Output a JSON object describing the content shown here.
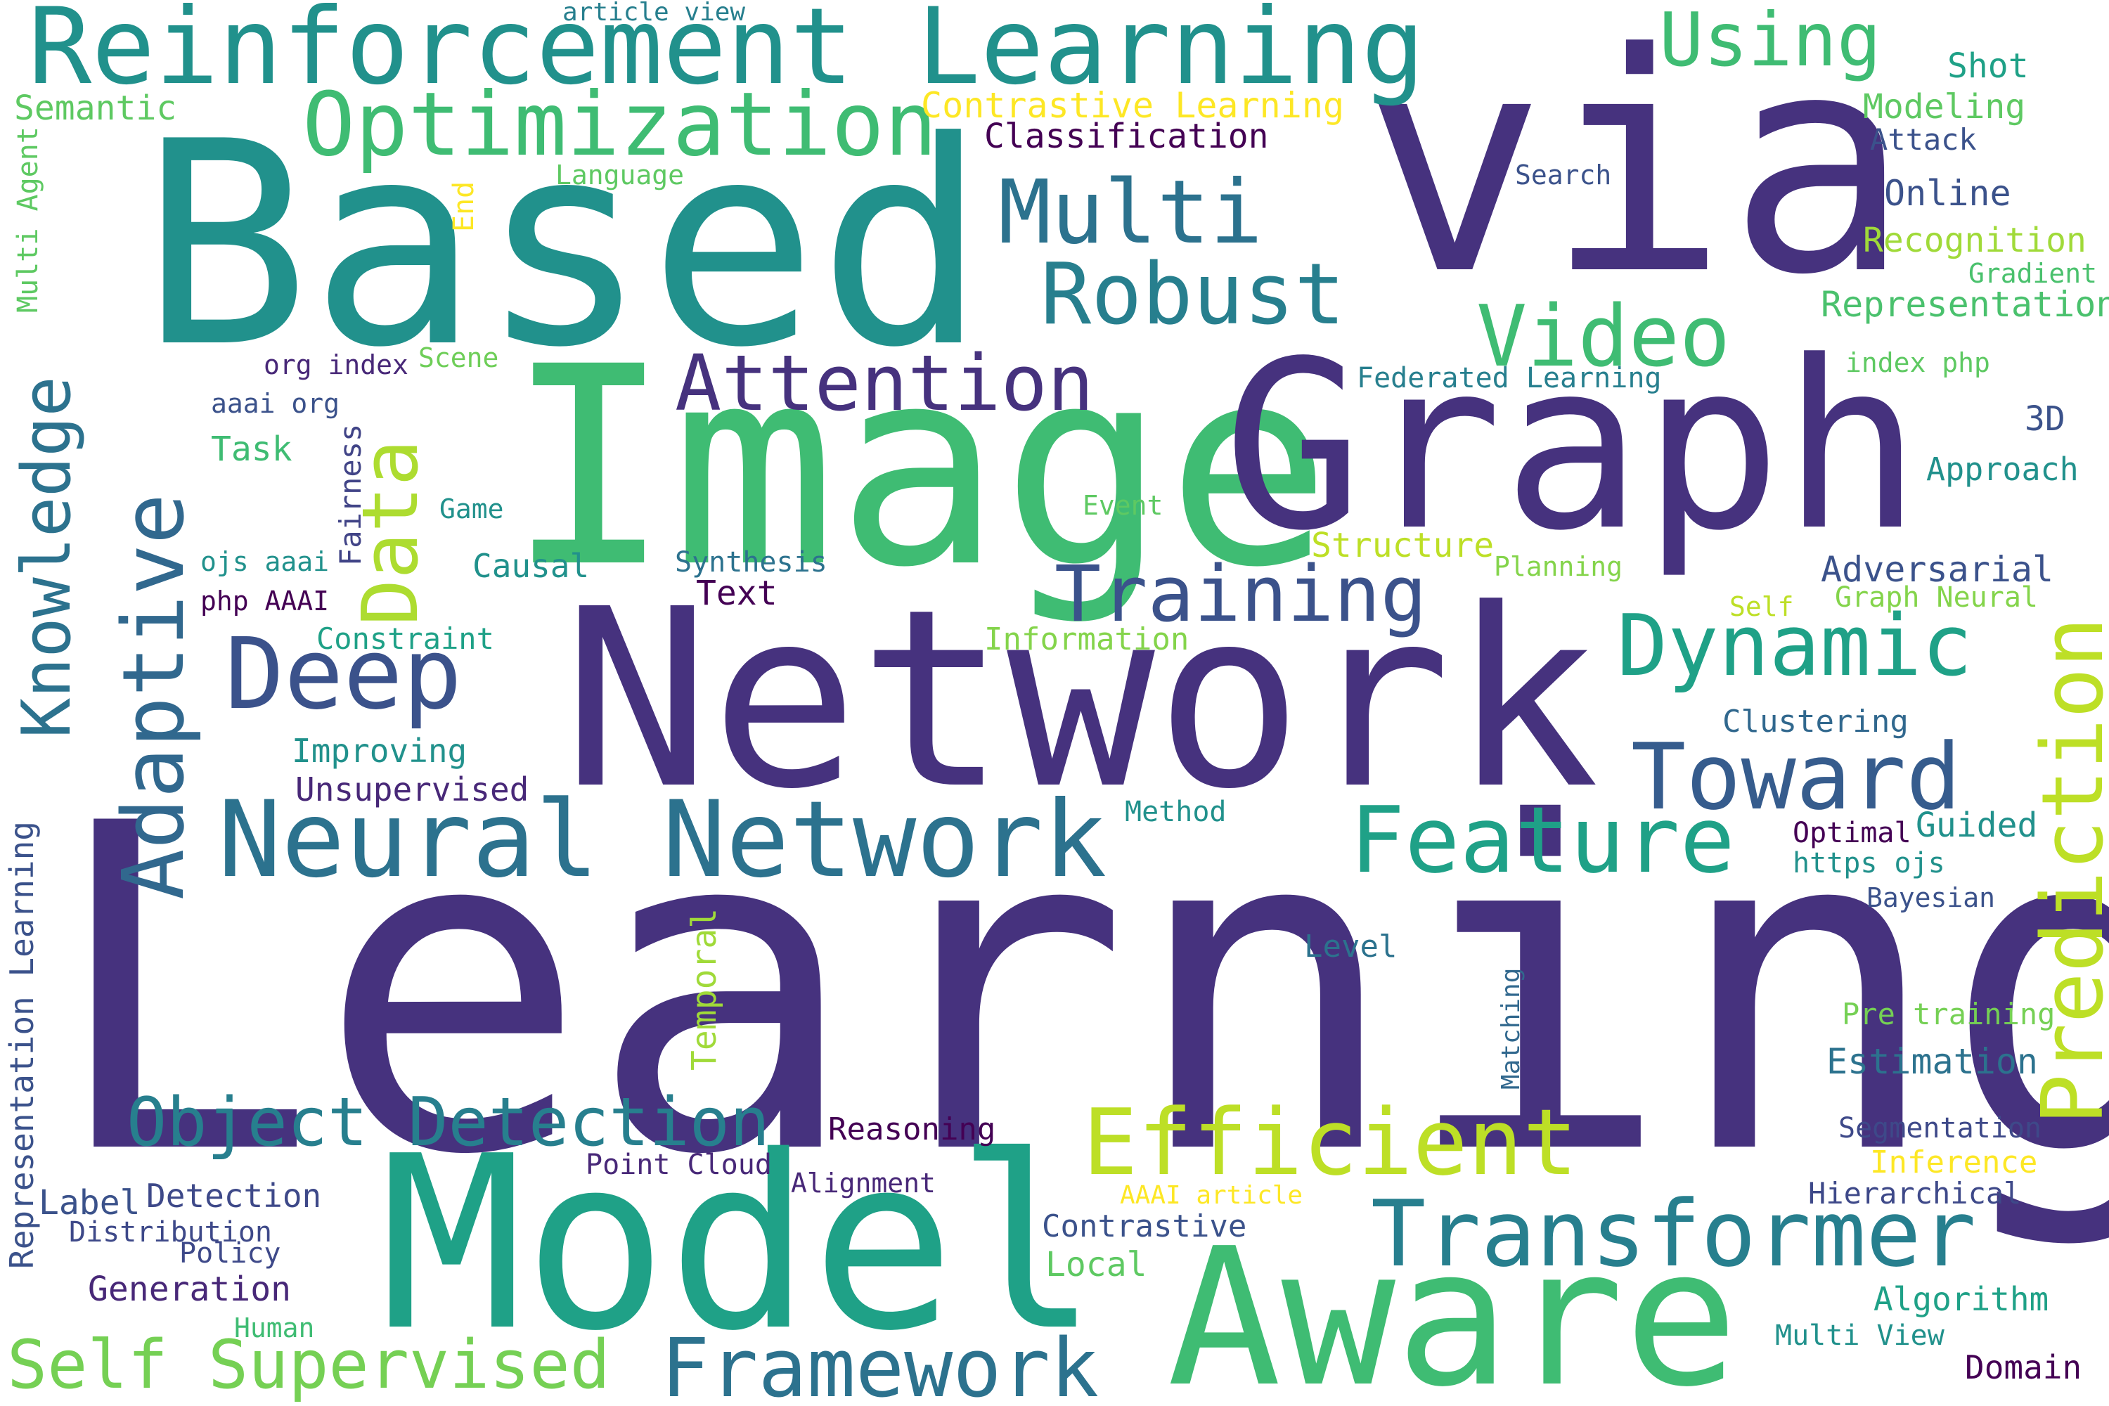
{
  "words": [
    {
      "text": "Learning",
      "color": "#46327e"
    },
    {
      "text": "Network",
      "color": "#46327e"
    },
    {
      "text": "via",
      "color": "#46327e"
    },
    {
      "text": "Based",
      "color": "#21918c"
    },
    {
      "text": "Image",
      "color": "#3fbc73"
    },
    {
      "text": "Graph",
      "color": "#46327e"
    },
    {
      "text": "Model",
      "color": "#1fa187"
    },
    {
      "text": "Aware",
      "color": "#3fbc73"
    },
    {
      "text": "Reinforcement Learning",
      "color": "#21918c"
    },
    {
      "text": "Neural Network",
      "color": "#2c728e"
    },
    {
      "text": "Transformer",
      "color": "#277f8e"
    },
    {
      "text": "Efficient",
      "color": "#bddf26"
    },
    {
      "text": "Feature",
      "color": "#1fa187"
    },
    {
      "text": "Toward",
      "color": "#365c8d"
    },
    {
      "text": "Dynamic",
      "color": "#1fa187"
    },
    {
      "text": "Prediction",
      "color": "#bddf26"
    },
    {
      "text": "Deep",
      "color": "#3b528b"
    },
    {
      "text": "Optimization",
      "color": "#3fbc73"
    },
    {
      "text": "Multi",
      "color": "#2c728e"
    },
    {
      "text": "Robust",
      "color": "#277f8e"
    },
    {
      "text": "Video",
      "color": "#3fbc73"
    },
    {
      "text": "Attention",
      "color": "#46327e"
    },
    {
      "text": "Training",
      "color": "#3b528b"
    },
    {
      "text": "Object Detection",
      "color": "#277f8e"
    },
    {
      "text": "Framework",
      "color": "#2c728e"
    },
    {
      "text": "Self Supervised",
      "color": "#75d054"
    },
    {
      "text": "Adaptive",
      "color": "#31688e"
    },
    {
      "text": "Knowledge",
      "color": "#2c728e"
    },
    {
      "text": "Data",
      "color": "#addc30"
    },
    {
      "text": "Using",
      "color": "#3fbc73"
    },
    {
      "text": "Contrastive Learning",
      "color": "#fde725"
    },
    {
      "text": "Classification",
      "color": "#440154"
    },
    {
      "text": "Semantic",
      "color": "#5ec962"
    },
    {
      "text": "Multi Agent",
      "color": "#5ec962"
    },
    {
      "text": "article view",
      "color": "#277f8e"
    },
    {
      "text": "Language",
      "color": "#5ec962"
    },
    {
      "text": "End",
      "color": "#fde725"
    },
    {
      "text": "Shot",
      "color": "#1fa187"
    },
    {
      "text": "Modeling",
      "color": "#5ec962"
    },
    {
      "text": "Attack",
      "color": "#3b528b"
    },
    {
      "text": "Search",
      "color": "#3b528b"
    },
    {
      "text": "Online",
      "color": "#3b528b"
    },
    {
      "text": "Recognition",
      "color": "#a0da39"
    },
    {
      "text": "Gradient",
      "color": "#4ac16d"
    },
    {
      "text": "Representation",
      "color": "#4ac16d"
    },
    {
      "text": "index php",
      "color": "#5ec962"
    },
    {
      "text": "Federated Learning",
      "color": "#277f8e"
    },
    {
      "text": "org index",
      "color": "#482878"
    },
    {
      "text": "Scene",
      "color": "#6ece58"
    },
    {
      "text": "aaai org",
      "color": "#3b528b"
    },
    {
      "text": "Task",
      "color": "#3fbc73"
    },
    {
      "text": "Fairness",
      "color": "#414487"
    },
    {
      "text": "Game",
      "color": "#21918c"
    },
    {
      "text": "Event",
      "color": "#5ec962"
    },
    {
      "text": "ojs aaai",
      "color": "#21918c"
    },
    {
      "text": "Causal",
      "color": "#21918c"
    },
    {
      "text": "Synthesis",
      "color": "#2c728e"
    },
    {
      "text": "Structure",
      "color": "#bddf26"
    },
    {
      "text": "Planning",
      "color": "#84d44b"
    },
    {
      "text": "php AAAI",
      "color": "#440154"
    },
    {
      "text": "Text",
      "color": "#440154"
    },
    {
      "text": "3D",
      "color": "#3b528b"
    },
    {
      "text": "Approach",
      "color": "#21918c"
    },
    {
      "text": "Adversarial",
      "color": "#3b528b"
    },
    {
      "text": "Graph Neural",
      "color": "#84d44b"
    },
    {
      "text": "Self",
      "color": "#bddf26"
    },
    {
      "text": "Constraint",
      "color": "#1fa187"
    },
    {
      "text": "Information",
      "color": "#84d44b"
    },
    {
      "text": "Clustering",
      "color": "#31688e"
    },
    {
      "text": "Improving",
      "color": "#21918c"
    },
    {
      "text": "Unsupervised",
      "color": "#482878"
    },
    {
      "text": "Method",
      "color": "#21918c"
    },
    {
      "text": "Optimal",
      "color": "#440154"
    },
    {
      "text": "Guided",
      "color": "#21918c"
    },
    {
      "text": "https ojs",
      "color": "#21918c"
    },
    {
      "text": "Bayesian",
      "color": "#3b528b"
    },
    {
      "text": "Representation Learning",
      "color": "#3b528b"
    },
    {
      "text": "Temporal",
      "color": "#a0da39"
    },
    {
      "text": "Level",
      "color": "#2c728e"
    },
    {
      "text": "Matching",
      "color": "#31688e"
    },
    {
      "text": "Pre training",
      "color": "#75d054"
    },
    {
      "text": "Estimation",
      "color": "#2c728e"
    },
    {
      "text": "Reasoning",
      "color": "#440154"
    },
    {
      "text": "Segmentation",
      "color": "#3e4989"
    },
    {
      "text": "Point Cloud",
      "color": "#482878"
    },
    {
      "text": "Inference",
      "color": "#fde725"
    },
    {
      "text": "Label",
      "color": "#3b528b"
    },
    {
      "text": "Detection",
      "color": "#3e4989"
    },
    {
      "text": "Alignment",
      "color": "#482878"
    },
    {
      "text": "AAAI article",
      "color": "#fde725"
    },
    {
      "text": "Hierarchical",
      "color": "#3e4989"
    },
    {
      "text": "Distribution",
      "color": "#3e4989"
    },
    {
      "text": "Policy",
      "color": "#3e4989"
    },
    {
      "text": "Contrastive",
      "color": "#3b528b"
    },
    {
      "text": "Local",
      "color": "#5ec962"
    },
    {
      "text": "Generation",
      "color": "#482878"
    },
    {
      "text": "Human",
      "color": "#3fbc73"
    },
    {
      "text": "Algorithm",
      "color": "#1fa187"
    },
    {
      "text": "Multi View",
      "color": "#21918c"
    },
    {
      "text": "Domain",
      "color": "#440154"
    }
  ]
}
